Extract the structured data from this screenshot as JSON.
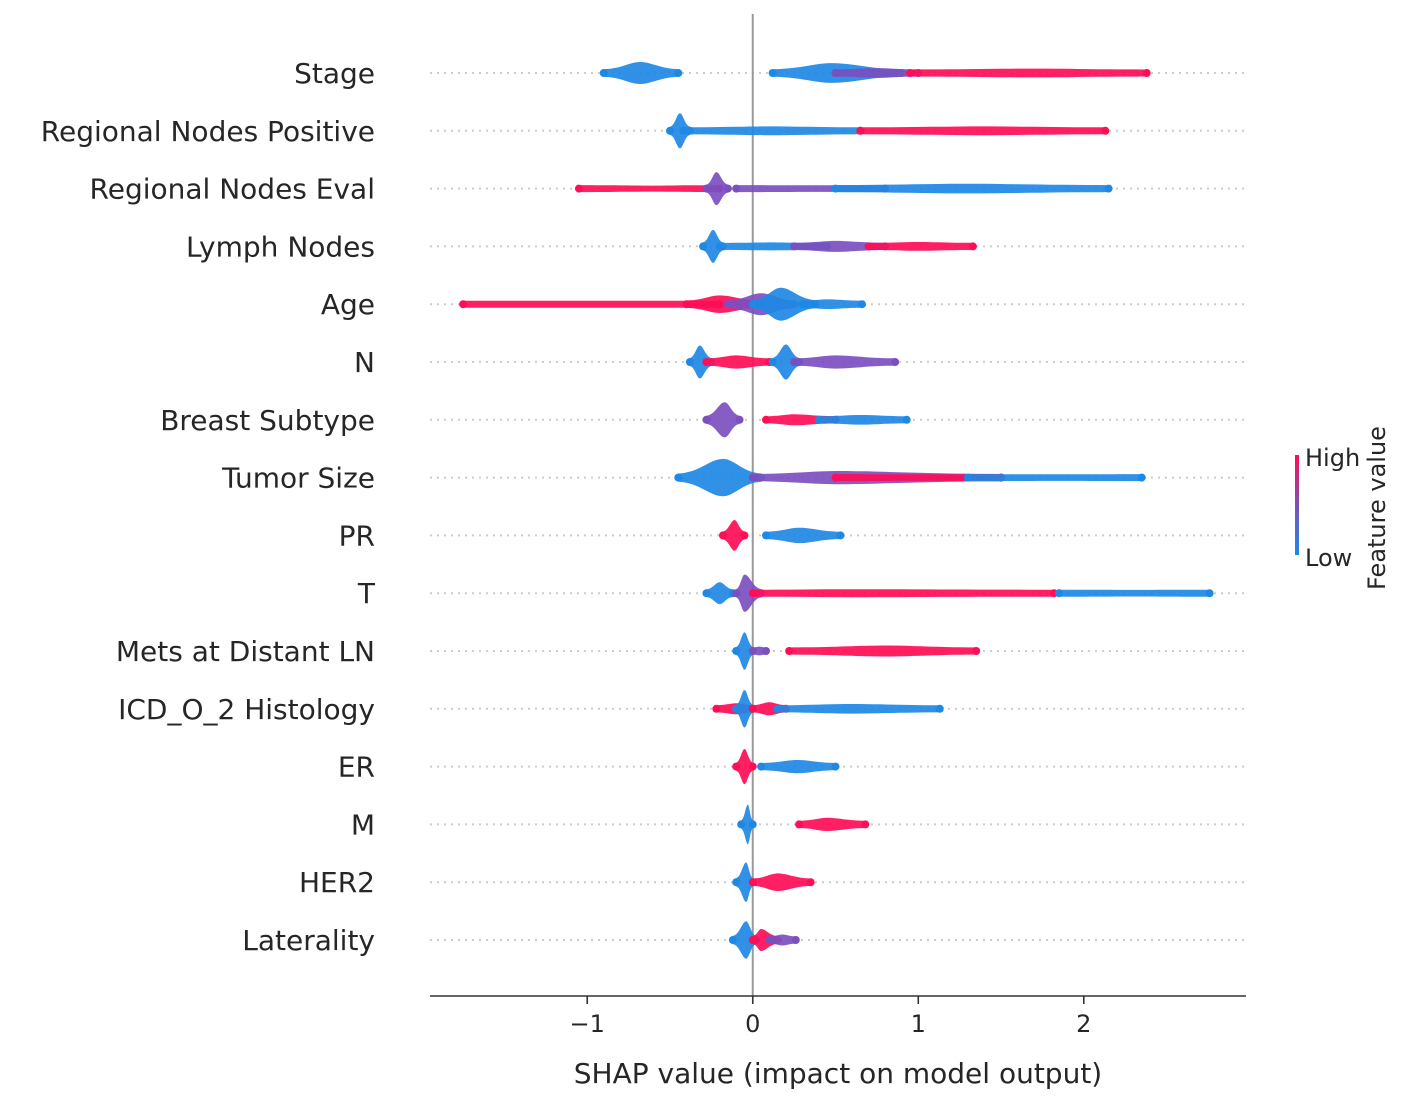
{
  "chart_data": {
    "type": "scatter",
    "subtype": "shap-beeswarm",
    "xlabel": "SHAP value (impact on model output)",
    "xlim": [
      -1.95,
      2.98
    ],
    "xticks": [
      {
        "value": -1,
        "label": "−1"
      },
      {
        "value": 0,
        "label": "0"
      },
      {
        "value": 1,
        "label": "1"
      },
      {
        "value": 2,
        "label": "2"
      }
    ],
    "colors": {
      "high": "#ff0d57",
      "low": "#1e88e5",
      "mid": "#7b4fbf",
      "axis": "#333333",
      "zero_line": "#999999",
      "guide": "#cccccc"
    },
    "colorbar": {
      "title": "Feature value",
      "high_label": "High",
      "low_label": "Low"
    },
    "features": [
      {
        "name": "Stage",
        "clusters": [
          {
            "x0": -0.9,
            "x1": -0.45,
            "center": -0.68,
            "width": 0.5,
            "color": "low"
          },
          {
            "x0": 0.12,
            "x1": 0.9,
            "center": 0.48,
            "width": 0.45,
            "color": "low"
          },
          {
            "x0": 0.5,
            "x1": 1.0,
            "center": 0.75,
            "width": 0.22,
            "color": "mid"
          },
          {
            "x0": 0.95,
            "x1": 2.38,
            "center": 1.7,
            "width": 0.2,
            "color": "high"
          }
        ]
      },
      {
        "name": "Regional Nodes Positive",
        "clusters": [
          {
            "x0": -0.5,
            "x1": -0.38,
            "center": -0.44,
            "width": 0.8,
            "color": "low"
          },
          {
            "x0": -0.42,
            "x1": 0.65,
            "center": 0.1,
            "width": 0.2,
            "color": "low"
          },
          {
            "x0": 0.65,
            "x1": 2.13,
            "center": 1.4,
            "width": 0.2,
            "color": "high"
          }
        ]
      },
      {
        "name": "Regional Nodes Eval",
        "clusters": [
          {
            "x0": -1.05,
            "x1": -0.2,
            "center": -0.6,
            "width": 0.12,
            "color": "high"
          },
          {
            "x0": -0.28,
            "x1": -0.15,
            "center": -0.22,
            "width": 0.75,
            "color": "mid"
          },
          {
            "x0": -0.1,
            "x1": 0.8,
            "center": 0.4,
            "width": 0.15,
            "color": "mid"
          },
          {
            "x0": 0.5,
            "x1": 2.15,
            "center": 1.3,
            "width": 0.22,
            "color": "low"
          }
        ]
      },
      {
        "name": "Lymph Nodes",
        "clusters": [
          {
            "x0": -0.3,
            "x1": -0.18,
            "center": -0.24,
            "width": 0.75,
            "color": "low"
          },
          {
            "x0": -0.2,
            "x1": 0.45,
            "center": 0.1,
            "width": 0.18,
            "color": "low"
          },
          {
            "x0": 0.25,
            "x1": 0.8,
            "center": 0.5,
            "width": 0.25,
            "color": "mid"
          },
          {
            "x0": 0.7,
            "x1": 1.33,
            "center": 1.0,
            "width": 0.2,
            "color": "high"
          }
        ]
      },
      {
        "name": "Age",
        "clusters": [
          {
            "x0": -1.75,
            "x1": -0.2,
            "center": -1.0,
            "width": 0.16,
            "color": "high"
          },
          {
            "x0": -0.4,
            "x1": 0.05,
            "center": -0.2,
            "width": 0.4,
            "color": "high"
          },
          {
            "x0": -0.15,
            "x1": 0.25,
            "center": 0.05,
            "width": 0.5,
            "color": "mid"
          },
          {
            "x0": 0.0,
            "x1": 0.38,
            "center": 0.17,
            "width": 0.75,
            "color": "low"
          },
          {
            "x0": 0.3,
            "x1": 0.66,
            "center": 0.45,
            "width": 0.22,
            "color": "low"
          }
        ]
      },
      {
        "name": "N",
        "clusters": [
          {
            "x0": -0.38,
            "x1": -0.25,
            "center": -0.32,
            "width": 0.75,
            "color": "low"
          },
          {
            "x0": -0.28,
            "x1": 0.1,
            "center": -0.1,
            "width": 0.3,
            "color": "high"
          },
          {
            "x0": 0.12,
            "x1": 0.28,
            "center": 0.2,
            "width": 0.8,
            "color": "low"
          },
          {
            "x0": 0.25,
            "x1": 0.86,
            "center": 0.5,
            "width": 0.3,
            "color": "mid"
          }
        ]
      },
      {
        "name": "Breast Subtype",
        "clusters": [
          {
            "x0": -0.28,
            "x1": -0.08,
            "center": -0.17,
            "width": 0.8,
            "color": "mid"
          },
          {
            "x0": 0.08,
            "x1": 0.5,
            "center": 0.25,
            "width": 0.25,
            "color": "high"
          },
          {
            "x0": 0.4,
            "x1": 0.93,
            "center": 0.65,
            "width": 0.22,
            "color": "low"
          }
        ]
      },
      {
        "name": "Tumor Size",
        "clusters": [
          {
            "x0": -0.45,
            "x1": 0.05,
            "center": -0.18,
            "width": 0.85,
            "color": "low"
          },
          {
            "x0": 0.0,
            "x1": 1.5,
            "center": 0.5,
            "width": 0.3,
            "color": "mid"
          },
          {
            "x0": 0.5,
            "x1": 1.5,
            "center": 1.0,
            "width": 0.15,
            "color": "high"
          },
          {
            "x0": 1.3,
            "x1": 2.35,
            "center": 1.9,
            "width": 0.15,
            "color": "low"
          }
        ]
      },
      {
        "name": "PR",
        "clusters": [
          {
            "x0": -0.18,
            "x1": -0.05,
            "center": -0.11,
            "width": 0.7,
            "color": "high"
          },
          {
            "x0": 0.08,
            "x1": 0.53,
            "center": 0.28,
            "width": 0.35,
            "color": "low"
          }
        ]
      },
      {
        "name": "T",
        "clusters": [
          {
            "x0": -0.28,
            "x1": -0.12,
            "center": -0.2,
            "width": 0.5,
            "color": "low"
          },
          {
            "x0": -0.1,
            "x1": 0.05,
            "center": -0.05,
            "width": 0.85,
            "color": "mid"
          },
          {
            "x0": 0.0,
            "x1": 1.82,
            "center": 0.6,
            "width": 0.18,
            "color": "high"
          },
          {
            "x0": 1.85,
            "x1": 2.76,
            "center": 2.3,
            "width": 0.15,
            "color": "low"
          }
        ]
      },
      {
        "name": "Mets at Distant LN",
        "clusters": [
          {
            "x0": -0.1,
            "x1": 0.0,
            "center": -0.05,
            "width": 0.85,
            "color": "low"
          },
          {
            "x0": 0.0,
            "x1": 0.08,
            "center": 0.04,
            "width": 0.2,
            "color": "mid"
          },
          {
            "x0": 0.22,
            "x1": 1.35,
            "center": 0.8,
            "width": 0.25,
            "color": "high"
          }
        ]
      },
      {
        "name": "ICD_O_2 Histology",
        "clusters": [
          {
            "x0": -0.22,
            "x1": 0.0,
            "center": -0.1,
            "width": 0.25,
            "color": "high"
          },
          {
            "x0": -0.1,
            "x1": 0.0,
            "center": -0.05,
            "width": 0.85,
            "color": "low"
          },
          {
            "x0": 0.0,
            "x1": 0.2,
            "center": 0.1,
            "width": 0.3,
            "color": "high"
          },
          {
            "x0": 0.15,
            "x1": 1.13,
            "center": 0.6,
            "width": 0.22,
            "color": "low"
          }
        ]
      },
      {
        "name": "ER",
        "clusters": [
          {
            "x0": -0.1,
            "x1": 0.0,
            "center": -0.05,
            "width": 0.8,
            "color": "high"
          },
          {
            "x0": 0.05,
            "x1": 0.5,
            "center": 0.27,
            "width": 0.3,
            "color": "low"
          }
        ]
      },
      {
        "name": "M",
        "clusters": [
          {
            "x0": -0.07,
            "x1": 0.0,
            "center": -0.03,
            "width": 0.9,
            "color": "low"
          },
          {
            "x0": 0.28,
            "x1": 0.68,
            "center": 0.45,
            "width": 0.3,
            "color": "high"
          }
        ]
      },
      {
        "name": "HER2",
        "clusters": [
          {
            "x0": -0.1,
            "x1": 0.0,
            "center": -0.04,
            "width": 0.9,
            "color": "low"
          },
          {
            "x0": 0.0,
            "x1": 0.35,
            "center": 0.15,
            "width": 0.4,
            "color": "high"
          }
        ]
      },
      {
        "name": "Laterality",
        "clusters": [
          {
            "x0": -0.12,
            "x1": 0.02,
            "center": -0.04,
            "width": 0.85,
            "color": "low"
          },
          {
            "x0": 0.0,
            "x1": 0.15,
            "center": 0.05,
            "width": 0.5,
            "color": "high"
          },
          {
            "x0": 0.1,
            "x1": 0.26,
            "center": 0.18,
            "width": 0.25,
            "color": "mid"
          }
        ]
      }
    ]
  }
}
